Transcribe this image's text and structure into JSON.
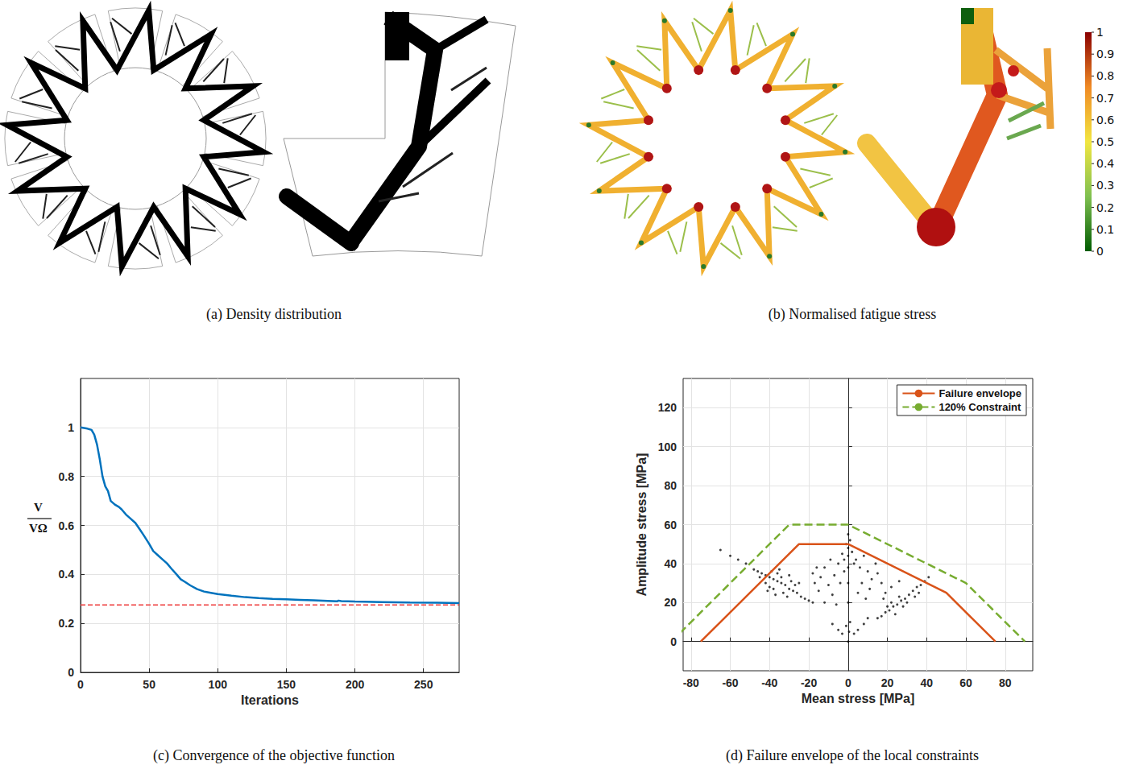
{
  "images": [
    {
      "caption": "(a) Density distribution"
    },
    {
      "caption": "(b) Normalised fatigue stress",
      "colorbar": {
        "range": [
          0,
          1
        ],
        "ticks": [
          0,
          0.1,
          0.2,
          0.3,
          0.4,
          0.5,
          0.6,
          0.7,
          0.8,
          0.9,
          1
        ]
      }
    }
  ],
  "chart_data": [
    {
      "type": "line",
      "caption": "(c) Convergence of the objective function",
      "xlabel": "Iterations",
      "ylabel": {
        "numerator": "V",
        "denominator": "VΩ"
      },
      "xlim": [
        0,
        276
      ],
      "xticks": [
        0,
        50,
        100,
        150,
        200,
        250
      ],
      "ylim": [
        0,
        1.2
      ],
      "yticks": [
        0,
        0.2,
        0.4,
        0.6,
        0.8,
        1
      ],
      "grid": true,
      "series": [
        {
          "color": "#0072bd",
          "line_style": "solid",
          "x": [
            0,
            5,
            8,
            10,
            12,
            14,
            16,
            18,
            20,
            22,
            25,
            28,
            30,
            33,
            36,
            40,
            43,
            46,
            50,
            53,
            56,
            60,
            63,
            66,
            70,
            73,
            76,
            80,
            85,
            90,
            95,
            100,
            110,
            120,
            130,
            140,
            150,
            160,
            170,
            180,
            187,
            188,
            190,
            200,
            220,
            240,
            260,
            276
          ],
          "values": [
            1.0,
            0.995,
            0.99,
            0.97,
            0.93,
            0.87,
            0.8,
            0.76,
            0.74,
            0.7,
            0.685,
            0.675,
            0.665,
            0.645,
            0.63,
            0.61,
            0.585,
            0.56,
            0.525,
            0.495,
            0.48,
            0.46,
            0.445,
            0.425,
            0.4,
            0.38,
            0.37,
            0.355,
            0.34,
            0.33,
            0.325,
            0.32,
            0.313,
            0.307,
            0.303,
            0.3,
            0.298,
            0.296,
            0.294,
            0.292,
            0.29,
            0.293,
            0.291,
            0.289,
            0.287,
            0.285,
            0.284,
            0.283
          ]
        },
        {
          "color": "#ee3b3b",
          "line_style": "dashed",
          "x": [
            0,
            276
          ],
          "values": [
            0.275,
            0.275
          ]
        }
      ]
    },
    {
      "type": "scatter",
      "caption": "(d) Failure envelope of the local constraints",
      "xlabel": "Mean stress [MPa]",
      "ylabel": "Amplitude stress [MPa]",
      "xlim": [
        -84,
        94
      ],
      "xticks": [
        -80,
        -60,
        -40,
        -20,
        0,
        20,
        40,
        60,
        80
      ],
      "ylim": [
        -15,
        135
      ],
      "yticks": [
        0,
        20,
        40,
        60,
        80,
        100,
        120
      ],
      "grid": true,
      "legend": "upper right",
      "series": [
        {
          "name": "Failure envelope",
          "type": "line",
          "color": "#d95319",
          "line_style": "solid",
          "x": [
            -75,
            -25,
            0,
            50,
            75
          ],
          "values": [
            0,
            50,
            50,
            25,
            0
          ]
        },
        {
          "name": "120% Constraint",
          "type": "line",
          "color": "#77ac30",
          "line_style": "dashed",
          "x": [
            -90,
            -30,
            0,
            60,
            90
          ],
          "values": [
            0,
            60,
            60,
            30,
            0
          ]
        },
        {
          "type": "scatter",
          "color": "#000000",
          "marker": "circle",
          "x": [
            -48,
            -46,
            -44,
            -42,
            -40,
            -38,
            -36,
            -34,
            -32,
            -30,
            -28,
            -26,
            -24,
            -22,
            -20,
            -18,
            -42,
            -40,
            -38,
            -36,
            -34,
            -33,
            -31,
            -29,
            -27,
            -35,
            -30,
            -37,
            -41,
            -25,
            -45,
            -39,
            -65,
            -60,
            -56,
            -52,
            -17,
            -15,
            -14,
            -12,
            -10,
            -8,
            -7,
            -5,
            -4,
            -3,
            -2,
            -12,
            -9,
            -6,
            -16,
            -18,
            0,
            0.5,
            1,
            -1,
            -3,
            3,
            0,
            0,
            0,
            0,
            0,
            1,
            0,
            -1,
            2,
            -2,
            3,
            -5,
            -8,
            5,
            8,
            10,
            4,
            6,
            8,
            10,
            12,
            14,
            7,
            5,
            11,
            15,
            17,
            9,
            15,
            17,
            19,
            21,
            23,
            25,
            27,
            29,
            31,
            33,
            35,
            37,
            39,
            41,
            22,
            26,
            30,
            34,
            20,
            24,
            28,
            18,
            36,
            22,
            26,
            19
          ],
          "values": [
            37,
            36,
            35,
            34,
            33,
            32,
            31,
            30,
            29,
            27,
            26,
            25,
            23,
            22,
            21,
            20,
            30,
            28,
            27,
            35,
            33,
            25,
            23,
            31,
            29,
            37,
            34,
            24,
            26,
            30,
            33,
            36,
            47,
            44,
            42,
            40,
            30,
            26,
            33,
            38,
            29,
            24,
            34,
            40,
            30,
            45,
            36,
            20,
            42,
            19,
            38,
            35,
            0,
            5,
            10,
            8,
            4,
            4,
            20,
            30,
            38,
            44,
            48,
            52,
            55,
            50,
            46,
            42,
            40,
            6,
            9,
            6,
            9,
            12,
            42,
            38,
            44,
            36,
            32,
            40,
            30,
            25,
            27,
            35,
            30,
            22,
            12,
            13,
            15,
            16,
            18,
            19,
            21,
            22,
            24,
            26,
            28,
            29,
            31,
            33,
            20,
            23,
            20,
            23,
            18,
            14,
            18,
            22,
            25,
            28,
            31,
            25
          ]
        }
      ]
    }
  ]
}
